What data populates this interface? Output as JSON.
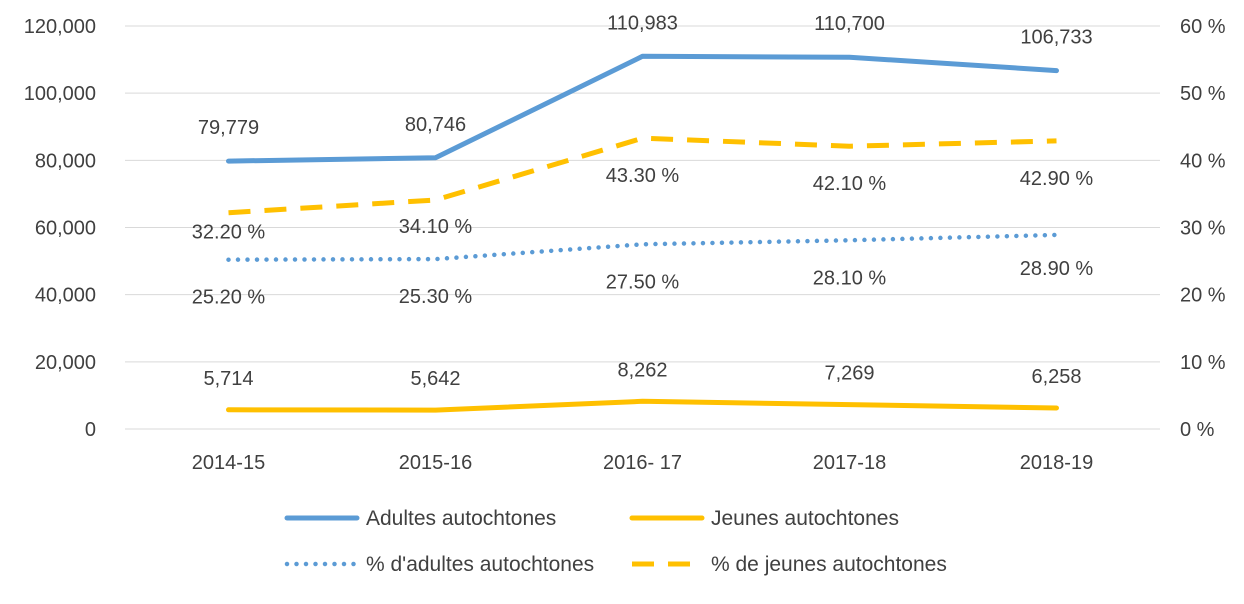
{
  "chart_data": {
    "type": "line",
    "categories": [
      "2014-15",
      "2015-16",
      "2016- 17",
      "2017-18",
      "2018-19"
    ],
    "y_left": {
      "ylim": [
        0,
        120000
      ],
      "ticks": [
        "0",
        "20,000",
        "40,000",
        "60,000",
        "80,000",
        "100,000",
        "120,000"
      ]
    },
    "y_right": {
      "ylim": [
        0,
        60
      ],
      "ticks": [
        "0 %",
        "10 %",
        "20 %",
        "30 %",
        "40 %",
        "50 %",
        "60 %"
      ]
    },
    "grid": "horizontal",
    "legend_position": "bottom",
    "series": [
      {
        "name": "Adultes autochtones",
        "axis": "left",
        "style": "solid",
        "color": "#5B9BD5",
        "values": [
          79779,
          80746,
          110983,
          110700,
          106733
        ],
        "labels": [
          "79,779",
          "80,746",
          "110,983",
          "110,700",
          "106,733"
        ]
      },
      {
        "name": "Jeunes autochtones",
        "axis": "left",
        "style": "solid",
        "color": "#FFC000",
        "values": [
          5714,
          5642,
          8262,
          7269,
          6258
        ],
        "labels": [
          "5,714",
          "5,642",
          "8,262",
          "7,269",
          "6,258"
        ]
      },
      {
        "name": "% d'adultes autochtones",
        "axis": "right",
        "style": "dotted",
        "color": "#5B9BD5",
        "values": [
          25.2,
          25.3,
          27.5,
          28.1,
          28.9
        ],
        "labels": [
          "25.20 %",
          "25.30 %",
          "27.50 %",
          "28.10 %",
          "28.90 %"
        ]
      },
      {
        "name": "% de jeunes autochtones",
        "axis": "right",
        "style": "dashed",
        "color": "#FFC000",
        "values": [
          32.2,
          34.1,
          43.3,
          42.1,
          42.9
        ],
        "labels": [
          "32.20 %",
          "34.10 %",
          "43.30 %",
          "42.10 %",
          "42.90 %"
        ]
      }
    ]
  }
}
